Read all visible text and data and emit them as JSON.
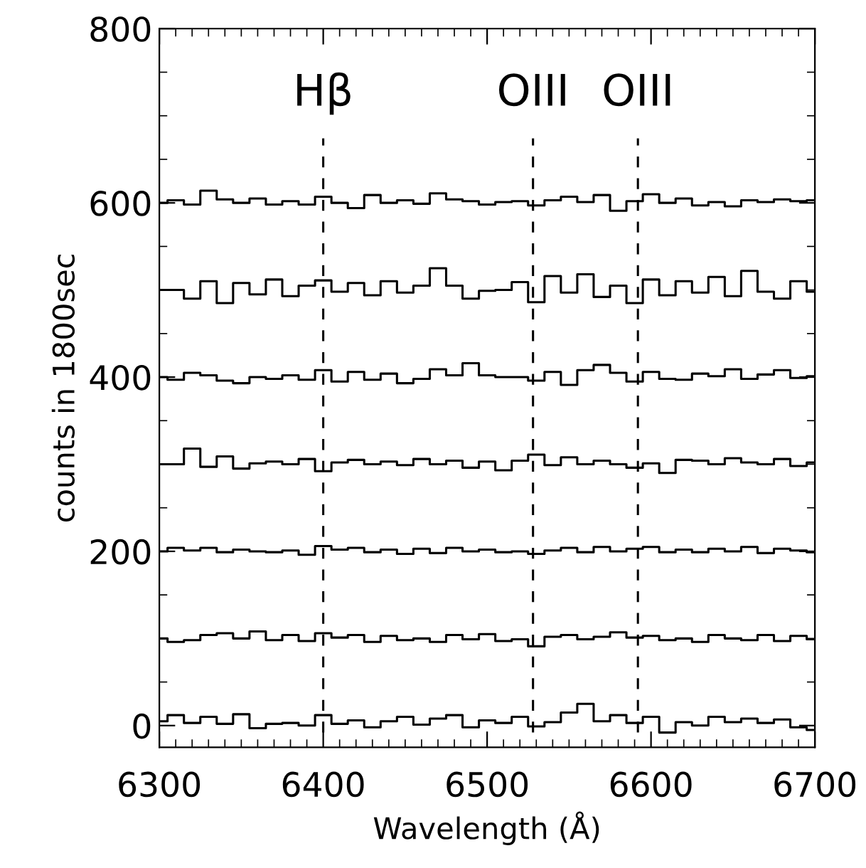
{
  "chart_data": {
    "type": "step",
    "xlabel": "Wavelength (Å)",
    "ylabel": "counts in 1800sec",
    "x": [
      6300,
      6310,
      6320,
      6330,
      6340,
      6350,
      6360,
      6370,
      6380,
      6390,
      6400,
      6410,
      6420,
      6430,
      6440,
      6450,
      6460,
      6470,
      6480,
      6490,
      6500,
      6510,
      6520,
      6530,
      6540,
      6550,
      6560,
      6570,
      6580,
      6590,
      6600,
      6610,
      6620,
      6630,
      6640,
      6650,
      6660,
      6670,
      6680,
      6690,
      6700
    ],
    "series": [
      {
        "color": "#000000",
        "values": [
          600,
          603,
          598,
          614,
          604,
          600,
          605,
          598,
          602,
          598,
          607,
          600,
          594,
          609,
          600,
          603,
          599,
          611,
          604,
          602,
          598,
          601,
          602,
          597,
          603,
          607,
          601,
          609,
          591,
          602,
          610,
          600,
          605,
          597,
          601,
          596,
          603,
          601,
          604,
          602,
          603
        ]
      },
      {
        "color": "#000000",
        "values": [
          500,
          500,
          490,
          510,
          485,
          508,
          495,
          512,
          493,
          505,
          511,
          498,
          508,
          494,
          510,
          497,
          505,
          525,
          505,
          490,
          499,
          500,
          509,
          486,
          516,
          497,
          518,
          492,
          505,
          485,
          512,
          494,
          510,
          497,
          515,
          493,
          522,
          498,
          490,
          510,
          498
        ]
      },
      {
        "color": "#000000",
        "values": [
          400,
          397,
          405,
          402,
          396,
          393,
          400,
          398,
          402,
          397,
          408,
          395,
          406,
          397,
          404,
          393,
          398,
          409,
          402,
          416,
          402,
          400,
          400,
          396,
          406,
          391,
          408,
          414,
          405,
          395,
          406,
          398,
          397,
          404,
          401,
          409,
          398,
          403,
          408,
          399,
          401
        ]
      },
      {
        "color": "#000000",
        "values": [
          300,
          300,
          318,
          297,
          309,
          295,
          301,
          303,
          300,
          306,
          292,
          302,
          305,
          300,
          303,
          299,
          306,
          300,
          304,
          296,
          303,
          293,
          304,
          311,
          299,
          308,
          300,
          304,
          300,
          296,
          301,
          290,
          305,
          304,
          300,
          307,
          302,
          300,
          306,
          298,
          302
        ]
      },
      {
        "color": "#000000",
        "values": [
          200,
          204,
          201,
          204,
          199,
          202,
          200,
          199,
          201,
          196,
          206,
          202,
          204,
          199,
          202,
          197,
          203,
          198,
          204,
          200,
          202,
          199,
          200,
          197,
          201,
          204,
          199,
          205,
          200,
          203,
          205,
          199,
          202,
          199,
          203,
          200,
          205,
          198,
          203,
          201,
          199
        ]
      },
      {
        "color": "#000000",
        "values": [
          100,
          96,
          98,
          104,
          106,
          100,
          108,
          98,
          104,
          97,
          106,
          101,
          104,
          96,
          103,
          98,
          100,
          96,
          104,
          99,
          105,
          97,
          99,
          91,
          102,
          104,
          99,
          102,
          107,
          101,
          103,
          98,
          100,
          96,
          104,
          100,
          98,
          104,
          97,
          103,
          99
        ]
      },
      {
        "color": "#000000",
        "values": [
          5,
          12,
          3,
          10,
          2,
          13,
          -3,
          2,
          3,
          0,
          12,
          2,
          6,
          -2,
          5,
          10,
          1,
          8,
          12,
          -2,
          6,
          3,
          10,
          -1,
          4,
          15,
          25,
          5,
          12,
          3,
          10,
          -8,
          4,
          0,
          10,
          4,
          8,
          3,
          7,
          -2,
          -5
        ]
      }
    ],
    "xlim": [
      6300,
      6700
    ],
    "xticks": [
      6300,
      6400,
      6500,
      6600,
      6700
    ],
    "ylim": [
      -25,
      800
    ],
    "yticks": [
      0,
      200,
      400,
      600,
      800
    ],
    "ref_lines": [
      {
        "axis": "x",
        "value": 6400,
        "label": "Hβ",
        "color": "#000000",
        "line_style": "dashed"
      },
      {
        "axis": "x",
        "value": 6528,
        "label": "OIII",
        "color": "#000000",
        "line_style": "dashed"
      },
      {
        "axis": "x",
        "value": 6592,
        "label": "OIII",
        "color": "#000000",
        "line_style": "dashed"
      }
    ]
  }
}
